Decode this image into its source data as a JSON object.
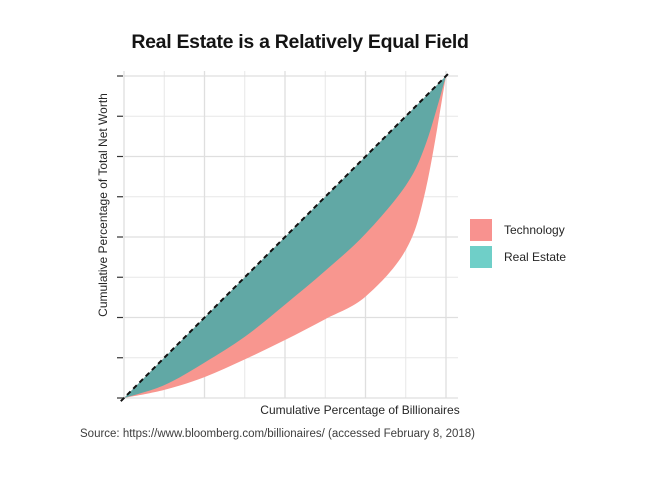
{
  "figure": {
    "title": "Real Estate is a Relatively Equal Field",
    "source_note": "Source: https://www.bloomberg.com/billionaires/ (accessed February 8, 2018)"
  },
  "axes": {
    "x_label": "Cumulative Percentage of Billionaires",
    "y_label": "Cumulative Percentage of Total Net Worth"
  },
  "legend": {
    "items": [
      {
        "label": "Technology",
        "color": "#F8928F"
      },
      {
        "label": "Real Estate",
        "color": "#6FCFC8"
      }
    ]
  },
  "chart_data": {
    "type": "area",
    "title": "Real Estate is a Relatively Equal Field",
    "xlabel": "Cumulative Percentage of Billionaires",
    "ylabel": "Cumulative Percentage of Total Net Worth",
    "xlim": [
      0,
      100
    ],
    "ylim": [
      0,
      100
    ],
    "grid": true,
    "tick_labels_shown": false,
    "grid_breaks_major": [
      0,
      25,
      50,
      75,
      100
    ],
    "grid_breaks_minor": [
      12.5,
      37.5,
      62.5,
      87.5
    ],
    "legend_position": "right",
    "equality_line": {
      "style": "dashed",
      "color": "#111111",
      "x": [
        0,
        100
      ],
      "y": [
        0,
        100
      ]
    },
    "x": [
      0,
      12.5,
      25,
      37.5,
      50,
      62.5,
      75,
      87.5,
      93.75,
      100
    ],
    "series": [
      {
        "name": "Technology",
        "values": [
          0,
          2.5,
          6.5,
          12,
          18,
          24.5,
          31.5,
          46,
          65,
          100
        ],
        "fill_plot": "#F8968F",
        "fill_legend": "#F8928F"
      },
      {
        "name": "Real Estate",
        "values": [
          0,
          4,
          11,
          19,
          29,
          39.5,
          51,
          66,
          79,
          100
        ],
        "fill_plot": "#61A8A5",
        "fill_legend": "#6FCFC8"
      }
    ]
  }
}
